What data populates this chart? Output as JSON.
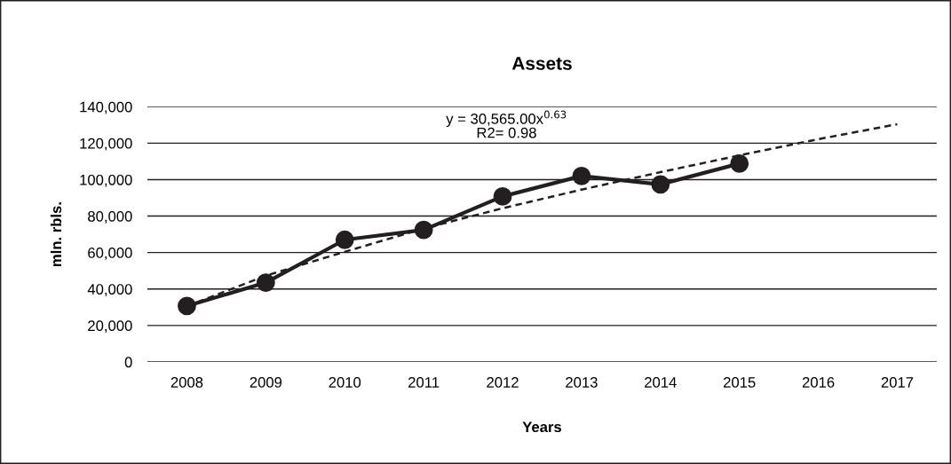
{
  "chart_data": {
    "type": "line",
    "title": "Assets",
    "xlabel": "Years",
    "ylabel": "mln. rbls.",
    "categories": [
      "2008",
      "2009",
      "2010",
      "2011",
      "2012",
      "2013",
      "2014",
      "2015",
      "2016",
      "2017"
    ],
    "series": [
      {
        "color": "#231f20",
        "values": [
          30700,
          43500,
          67000,
          72400,
          90800,
          102000,
          97400,
          108800,
          null,
          null
        ],
        "marker": "circle",
        "line_style": "solid"
      },
      {
        "color": "#231f20",
        "values": [
          30565,
          47300,
          60400,
          73200,
          84300,
          94500,
          104100,
          113300,
          122200,
          130400
        ],
        "marker": "none",
        "line_style": "dashed"
      }
    ],
    "ylim": [
      0,
      140000
    ],
    "yticks": [
      {
        "value": 0,
        "label": "0"
      },
      {
        "value": 20000,
        "label": "20,000"
      },
      {
        "value": 40000,
        "label": "40,000"
      },
      {
        "value": 60000,
        "label": "60,000"
      },
      {
        "value": 80000,
        "label": "80,000"
      },
      {
        "value": 100000,
        "label": "100,000"
      },
      {
        "value": 120000,
        "label": "120,000"
      },
      {
        "value": 140000,
        "label": "140,000"
      }
    ],
    "grid": "y",
    "legend": false,
    "annotations": [
      "y = 30,565.00x$^{0.63}$\nR2= 0.98"
    ]
  }
}
